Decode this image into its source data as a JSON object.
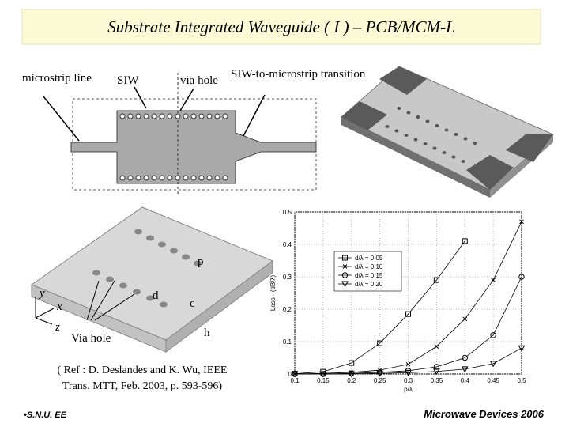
{
  "header": {
    "title": "Substrate Integrated Waveguide ( I ) – PCB/MCM-L"
  },
  "figures": {
    "microstrip": "microstrip line",
    "siw": "SIW",
    "via": "via hole",
    "transition": "SIW-to-microstrip transition",
    "p": "p",
    "d": "d",
    "c": "c",
    "h": "h",
    "via_hole": "Via hole",
    "axis_y": "y",
    "axis_x": "x",
    "axis_z": "z"
  },
  "chart_data": {
    "type": "line",
    "x_label": "p/λ",
    "y_label": "Loss - (dB/λ)",
    "x": [
      0.1,
      0.15,
      0.2,
      0.25,
      0.3,
      0.35,
      0.4,
      0.45,
      0.5
    ],
    "series": [
      {
        "name": "d/λ = 0.05",
        "color": "#000000",
        "marker": "square",
        "values": [
          0.001,
          0.007,
          0.034,
          0.095,
          0.185,
          0.29,
          0.41,
          null,
          null
        ]
      },
      {
        "name": "d/λ = 0.10",
        "color": "#000000",
        "marker": "x",
        "values": [
          0,
          0.002,
          0.005,
          0.012,
          0.03,
          0.085,
          0.17,
          0.29,
          0.47
        ]
      },
      {
        "name": "d/λ = 0.15",
        "color": "#000000",
        "marker": "circle",
        "values": [
          0,
          0,
          0.002,
          0.005,
          0.01,
          0.022,
          0.05,
          0.12,
          0.3
        ]
      },
      {
        "name": "d/λ = 0.20",
        "color": "#000000",
        "marker": "triangle-down",
        "values": [
          0,
          0,
          0,
          0.002,
          0.004,
          0.008,
          0.015,
          0.032,
          0.08
        ]
      }
    ],
    "xlim": [
      0.1,
      0.5
    ],
    "xticks": [
      0.1,
      0.15,
      0.2,
      0.25,
      0.3,
      0.35,
      0.4,
      0.45,
      0.5
    ],
    "ylim": [
      0,
      0.5
    ],
    "yticks": [
      0,
      0.1,
      0.2,
      0.3,
      0.4,
      0.5
    ],
    "grid": true,
    "legend": "upper left"
  },
  "reference": {
    "line1": "( Ref : D. Deslandes and K. Wu, IEEE",
    "line2": "Trans. MTT, Feb. 2003, p. 593-596)"
  },
  "footer": {
    "left": "•S.N.U. EE",
    "right": "Microwave Devices 2006"
  }
}
